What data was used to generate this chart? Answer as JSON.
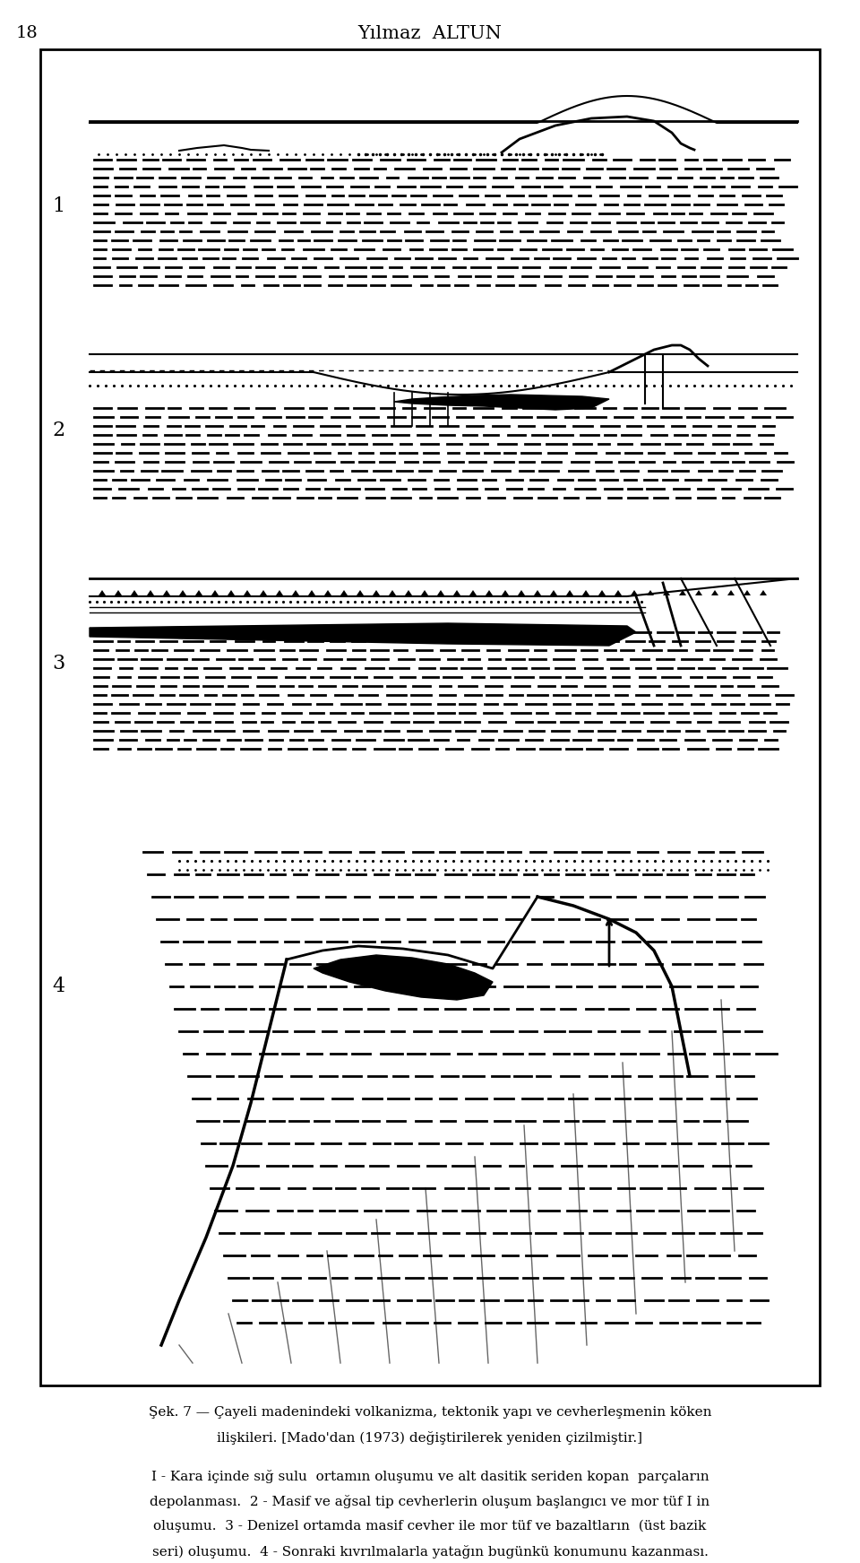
{
  "page_number": "18",
  "header_title": "Yılmaz  ALTUN",
  "caption_line1": "Şek. 7 — Çayeli madenindeki volkanizma, tektonik yapı ve cevherleşmenin köken",
  "caption_line2": "ilişkileri. [Mado'dan (1973) değiştirilerek yeniden çizilmiştir.]",
  "caption_line3": "I - Kara içinde sığ sulu  ortamın oluşumu ve alt dasitik seriden kopan  parçaların",
  "caption_line4": "depolanması.  2 - Masif ve ağsal tip cevherlerin oluşum başlangıcı ve mor tüf I in",
  "caption_line5": "oluşumu.  3 - Denizel ortamda masif cevher ile mor tüf ve bazaltların  (üst bazik",
  "caption_line6": "seri) oluşumu.  4 - Sonraki kıvrılmalarla yatağın bugünkü konumunu kazanması.",
  "bg_color": "#ffffff",
  "frame_color": "#000000",
  "text_color": "#000000"
}
